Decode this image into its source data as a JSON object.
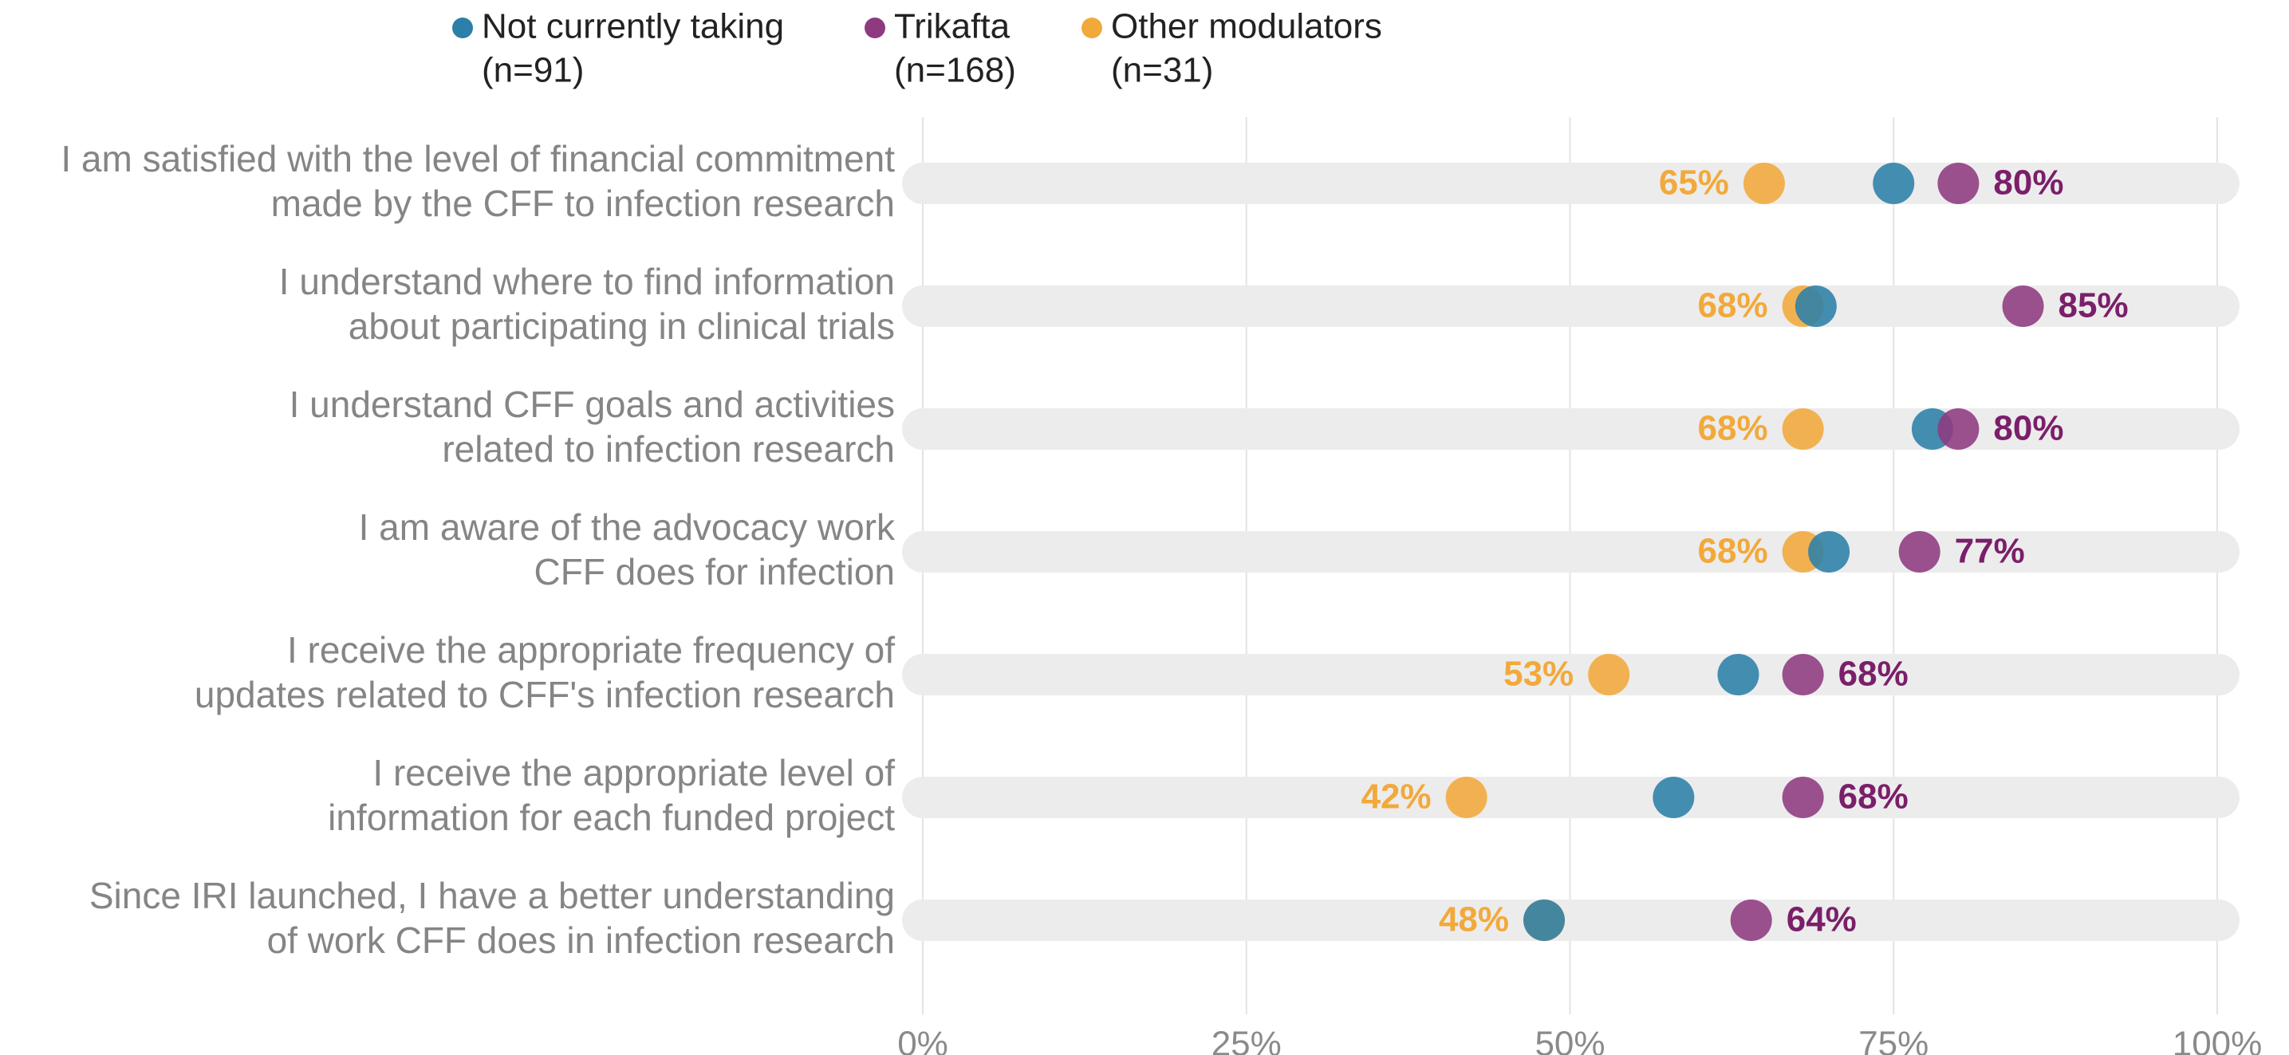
{
  "chart_data": {
    "type": "dot",
    "categories": [
      [
        "I am satisfied with the level of financial commitment",
        "made by the CFF to infection research"
      ],
      [
        "I understand where to find information",
        "about participating in clinical trials"
      ],
      [
        "I understand CFF goals and activities",
        "related to infection research"
      ],
      [
        "I am aware of the advocacy work",
        "CFF does for infection"
      ],
      [
        "I receive the appropriate frequency of",
        "updates related to CFF's infection research"
      ],
      [
        "I receive the appropriate level of",
        "information for each funded project"
      ],
      [
        "Since IRI launched, I have a better understanding",
        "of work CFF does in infection research"
      ]
    ],
    "series": [
      {
        "name": "Other modulators",
        "sample": "(n=31)",
        "color": "#f2a93b",
        "label_side": "left",
        "values": [
          65,
          68,
          68,
          68,
          53,
          42,
          48
        ],
        "value_labels": [
          "65%",
          "68%",
          "68%",
          "68%",
          "53%",
          "42%",
          "48%"
        ]
      },
      {
        "name": "Not currently taking",
        "sample": "(n=91)",
        "color": "#2b7fa8",
        "values": [
          75,
          69,
          78,
          70,
          63,
          58,
          48
        ]
      },
      {
        "name": "Trikafta",
        "sample": "(n=168)",
        "color": "#8e3a80",
        "label_side": "right",
        "label_color": "#7b1f6a",
        "values": [
          80,
          85,
          80,
          77,
          68,
          68,
          64
        ],
        "value_labels": [
          "80%",
          "85%",
          "80%",
          "77%",
          "68%",
          "68%",
          "64%"
        ]
      }
    ],
    "legend_order": [
      1,
      2,
      0
    ],
    "xlim": [
      0,
      100
    ],
    "xticks": [
      {
        "value": 0,
        "label": "0%"
      },
      {
        "value": 25,
        "label": "25%"
      },
      {
        "value": 50,
        "label": "50%"
      },
      {
        "value": 75,
        "label": "75%"
      },
      {
        "value": 100,
        "label": "100%"
      }
    ],
    "grid": true
  }
}
